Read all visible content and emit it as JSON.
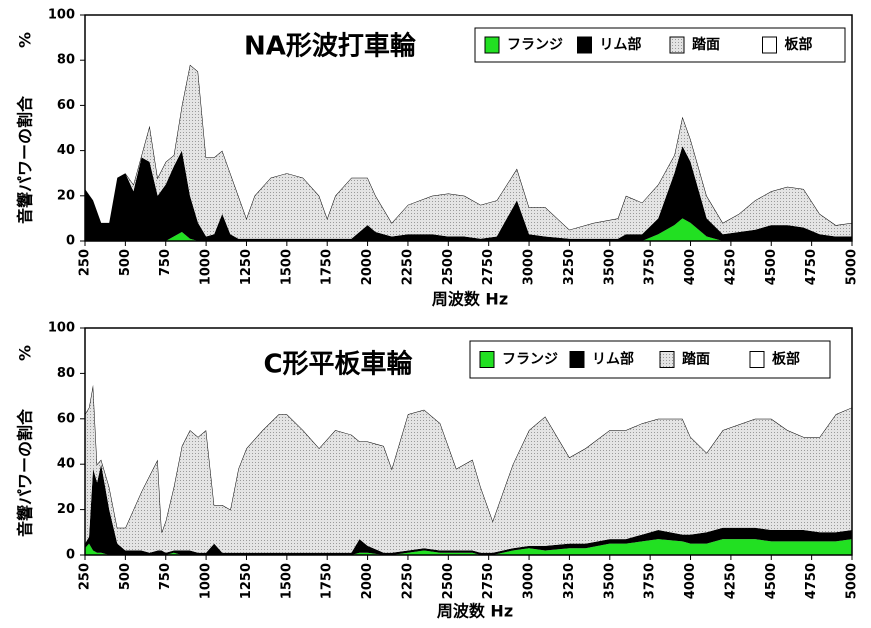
{
  "chart_data": [
    {
      "type": "stacked_area",
      "title": "NA形波打車輪",
      "xlabel": "周波数 Hz",
      "ylabel": "音響パワーの割合　　　%",
      "x": [
        250,
        300,
        350,
        400,
        450,
        500,
        550,
        600,
        650,
        700,
        750,
        800,
        850,
        900,
        950,
        1000,
        1050,
        1100,
        1150,
        1200,
        1250,
        1300,
        1400,
        1500,
        1600,
        1700,
        1750,
        1800,
        1900,
        2000,
        2050,
        2150,
        2250,
        2400,
        2500,
        2600,
        2700,
        2800,
        2925,
        3000,
        3100,
        3250,
        3400,
        3550,
        3600,
        3700,
        3800,
        3900,
        3950,
        4000,
        4100,
        4200,
        4300,
        4400,
        4500,
        4600,
        4700,
        4800,
        4900,
        5000
      ],
      "series": [
        {
          "name": "フランジ",
          "color": "#22e022",
          "values": [
            0,
            0,
            0,
            0,
            0,
            0,
            0,
            0,
            0,
            0,
            0,
            2,
            4,
            1,
            0,
            0,
            0,
            0,
            0,
            0,
            0,
            0,
            0,
            0,
            0,
            0,
            0,
            0,
            0,
            0,
            0,
            0,
            0,
            0,
            0,
            0,
            0,
            0,
            0,
            0,
            0,
            0,
            0,
            0,
            0,
            0,
            3,
            7,
            10,
            8,
            2,
            0,
            0,
            0,
            0,
            0,
            0,
            0,
            0,
            0
          ]
        },
        {
          "name": "リム部",
          "color": "#000000",
          "values": [
            23,
            18,
            8,
            8,
            28,
            30,
            22,
            37,
            35,
            20,
            25,
            31,
            36,
            19,
            8,
            2,
            3,
            12,
            3,
            1,
            1,
            1,
            1,
            1,
            1,
            1,
            1,
            1,
            1,
            7,
            4,
            2,
            3,
            3,
            2,
            2,
            1,
            2,
            18,
            3,
            2,
            1,
            1,
            1,
            3,
            3,
            7,
            23,
            32,
            27,
            8,
            3,
            4,
            5,
            7,
            7,
            6,
            3,
            2,
            2
          ]
        },
        {
          "name": "踏面",
          "color": "#d8d8d8",
          "values": [
            0,
            0,
            0,
            0,
            0,
            0,
            3,
            1,
            16,
            8,
            10,
            5,
            20,
            58,
            67,
            35,
            34,
            28,
            27,
            19,
            9,
            19,
            27,
            29,
            27,
            19,
            9,
            19,
            27,
            21,
            16,
            6,
            13,
            17,
            19,
            18,
            15,
            16,
            14,
            12,
            13,
            4,
            7,
            9,
            17,
            14,
            15,
            8,
            13,
            10,
            10,
            5,
            8,
            13,
            15,
            17,
            17,
            9,
            5,
            6
          ]
        },
        {
          "name": "板部",
          "color": "#ffffff",
          "values": [
            77,
            82,
            92,
            92,
            72,
            70,
            75,
            62,
            49,
            72,
            65,
            62,
            40,
            22,
            25,
            63,
            63,
            60,
            70,
            80,
            90,
            80,
            72,
            70,
            72,
            80,
            90,
            80,
            72,
            72,
            80,
            92,
            84,
            80,
            79,
            80,
            84,
            82,
            68,
            85,
            85,
            95,
            92,
            90,
            80,
            83,
            75,
            62,
            45,
            55,
            80,
            92,
            88,
            82,
            78,
            76,
            77,
            88,
            93,
            92
          ]
        }
      ],
      "xlim": [
        250,
        5000
      ],
      "xticks": [
        250,
        500,
        750,
        1000,
        1250,
        1500,
        1750,
        2000,
        2250,
        2500,
        2750,
        3000,
        3250,
        3500,
        3750,
        4000,
        4250,
        4500,
        4750,
        5000
      ],
      "ylim": [
        0,
        100
      ],
      "yticks": [
        0,
        20,
        40,
        60,
        80,
        100
      ],
      "legend": "top-right"
    },
    {
      "type": "stacked_area",
      "title": "C形平板車輪",
      "xlabel": "周波数 Hz",
      "ylabel": "音響パワーの割合　　　%",
      "x": [
        250,
        275,
        300,
        325,
        350,
        400,
        450,
        500,
        550,
        600,
        650,
        700,
        725,
        750,
        800,
        850,
        900,
        950,
        1000,
        1050,
        1100,
        1150,
        1200,
        1250,
        1350,
        1450,
        1500,
        1600,
        1700,
        1800,
        1900,
        1950,
        2000,
        2100,
        2150,
        2250,
        2350,
        2450,
        2550,
        2650,
        2700,
        2775,
        2900,
        3000,
        3100,
        3250,
        3350,
        3500,
        3600,
        3700,
        3800,
        3950,
        4000,
        4100,
        4200,
        4400,
        4500,
        4600,
        4700,
        4800,
        4900,
        5000
      ],
      "series": [
        {
          "name": "フランジ",
          "color": "#22e022",
          "values": [
            3,
            5,
            2,
            1,
            1,
            0,
            0,
            0,
            0,
            0,
            0,
            0,
            0,
            0,
            1,
            0,
            0,
            0,
            0,
            0,
            0,
            0,
            0,
            0,
            0,
            0,
            0,
            0,
            0,
            0,
            0,
            1,
            1,
            0,
            0,
            1,
            2,
            1,
            1,
            1,
            0,
            0,
            2,
            3,
            2,
            3,
            3,
            5,
            5,
            6,
            7,
            6,
            5,
            5,
            7,
            7,
            6,
            6,
            6,
            6,
            6,
            7
          ]
        },
        {
          "name": "リム部",
          "color": "#000000",
          "values": [
            2,
            3,
            36,
            31,
            39,
            20,
            5,
            2,
            2,
            2,
            1,
            2,
            2,
            1,
            1,
            2,
            2,
            1,
            1,
            5,
            1,
            1,
            1,
            1,
            1,
            1,
            1,
            1,
            1,
            1,
            1,
            6,
            3,
            1,
            1,
            1,
            1,
            1,
            1,
            1,
            1,
            1,
            1,
            1,
            2,
            2,
            2,
            2,
            2,
            3,
            4,
            3,
            4,
            5,
            5,
            5,
            5,
            5,
            5,
            4,
            4,
            4
          ]
        },
        {
          "name": "踏面",
          "color": "#d8d8d8",
          "values": [
            57,
            57,
            37,
            8,
            2,
            10,
            7,
            10,
            18,
            26,
            34,
            40,
            8,
            14,
            28,
            46,
            53,
            51,
            54,
            17,
            21,
            19,
            37,
            46,
            54,
            61,
            61,
            54,
            46,
            54,
            52,
            43,
            46,
            47,
            37,
            60,
            61,
            56,
            36,
            40,
            29,
            14,
            37,
            51,
            57,
            38,
            42,
            48,
            48,
            49,
            49,
            51,
            43,
            35,
            43,
            48,
            49,
            44,
            41,
            42,
            52,
            54
          ]
        },
        {
          "name": "板部",
          "color": "#ffffff",
          "values": [
            38,
            35,
            25,
            60,
            58,
            70,
            88,
            88,
            80,
            72,
            65,
            58,
            90,
            85,
            70,
            52,
            45,
            48,
            45,
            78,
            78,
            80,
            62,
            53,
            45,
            38,
            38,
            45,
            53,
            45,
            47,
            50,
            50,
            52,
            62,
            38,
            36,
            42,
            62,
            58,
            70,
            85,
            60,
            45,
            39,
            57,
            53,
            45,
            45,
            42,
            40,
            40,
            48,
            55,
            45,
            40,
            40,
            45,
            48,
            48,
            38,
            35
          ]
        }
      ],
      "xlim": [
        250,
        5000
      ],
      "xticks": [
        250,
        500,
        750,
        1000,
        1250,
        1500,
        1750,
        2000,
        2250,
        2500,
        2750,
        3000,
        3250,
        3500,
        3750,
        4000,
        4250,
        4500,
        4750,
        5000
      ],
      "ylim": [
        0,
        100
      ],
      "yticks": [
        0,
        20,
        40,
        60,
        80,
        100
      ],
      "legend": "top-right"
    }
  ]
}
